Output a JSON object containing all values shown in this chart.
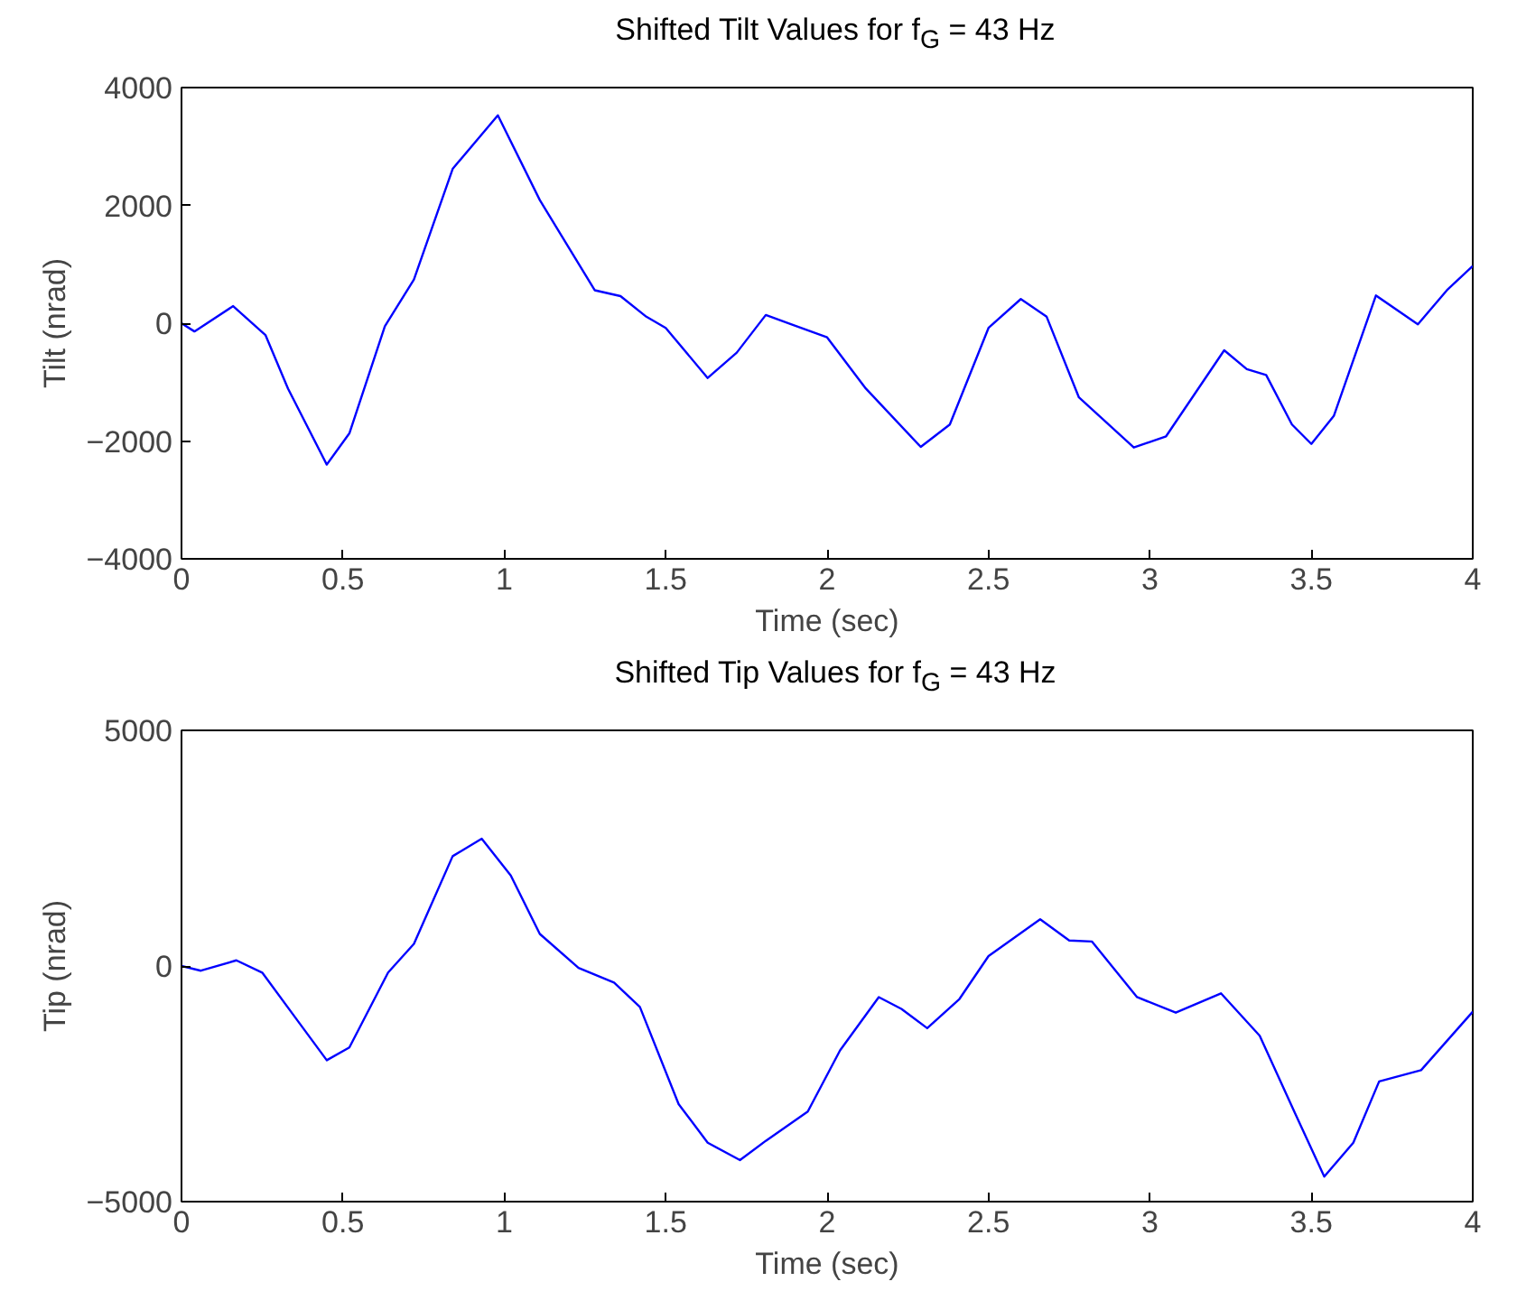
{
  "chart_data": [
    {
      "type": "line",
      "title": "Shifted Tilt Values for f$_{G}$ = 43 Hz",
      "xlabel": "Time (sec)",
      "ylabel": "Tilt (nrad)",
      "x": [
        0,
        0.04,
        0.16,
        0.26,
        0.33,
        0.45,
        0.52,
        0.63,
        0.72,
        0.84,
        0.98,
        1.11,
        1.28,
        1.36,
        1.44,
        1.5,
        1.63,
        1.72,
        1.81,
        1.89,
        2.0,
        2.12,
        2.29,
        2.38,
        2.5,
        2.6,
        2.68,
        2.78,
        2.95,
        3.05,
        3.23,
        3.3,
        3.36,
        3.44,
        3.5,
        3.57,
        3.7,
        3.83,
        3.92,
        4.0
      ],
      "series": [
        {
          "color": "#0000ff",
          "values": [
            0,
            -140,
            290,
            -200,
            -1110,
            -2400,
            -1870,
            -50,
            740,
            2620,
            3530,
            2090,
            560,
            460,
            110,
            -80,
            -930,
            -500,
            140,
            -20,
            -240,
            -1110,
            -2100,
            -1720,
            -80,
            410,
            110,
            -1260,
            -2110,
            -1920,
            -460,
            -780,
            -880,
            -1720,
            -2050,
            -1570,
            470,
            -20,
            560,
            970
          ]
        }
      ],
      "xlim": [
        0,
        4
      ],
      "xticks": [
        0,
        0.5,
        1,
        1.5,
        2,
        2.5,
        3,
        3.5,
        4
      ],
      "ylim": [
        -4000,
        4000
      ],
      "yticks": [
        -4000,
        -2000,
        0,
        2000,
        4000
      ],
      "grid": false
    },
    {
      "type": "line",
      "title": "Shifted Tip Values for f$_{G}$ = 43 Hz",
      "xlabel": "Time (sec)",
      "ylabel": "Tip (nrad)",
      "x": [
        0,
        0.06,
        0.17,
        0.25,
        0.35,
        0.45,
        0.52,
        0.64,
        0.72,
        0.84,
        0.93,
        1.02,
        1.11,
        1.23,
        1.34,
        1.42,
        1.54,
        1.63,
        1.73,
        1.81,
        1.94,
        2.04,
        2.16,
        2.23,
        2.31,
        2.41,
        2.5,
        2.66,
        2.75,
        2.82,
        2.96,
        3.08,
        3.22,
        3.34,
        3.45,
        3.54,
        3.63,
        3.71,
        3.84,
        4.0
      ],
      "series": [
        {
          "color": "#0000ff",
          "values": [
            0,
            -100,
            120,
            -140,
            -1070,
            -2000,
            -1730,
            -140,
            470,
            2330,
            2700,
            1920,
            680,
            -40,
            -350,
            -870,
            -2930,
            -3750,
            -4120,
            -3710,
            -3090,
            -1790,
            -660,
            -910,
            -1320,
            -700,
            210,
            990,
            540,
            520,
            -660,
            -990,
            -580,
            -1480,
            -3130,
            -4470,
            -3750,
            -2450,
            -2210,
            -970
          ]
        }
      ],
      "xlim": [
        0,
        4
      ],
      "xticks": [
        0,
        0.5,
        1,
        1.5,
        2,
        2.5,
        3,
        3.5,
        4
      ],
      "ylim": [
        -5000,
        5000
      ],
      "yticks": [
        -5000,
        0,
        5000
      ],
      "grid": false
    }
  ]
}
